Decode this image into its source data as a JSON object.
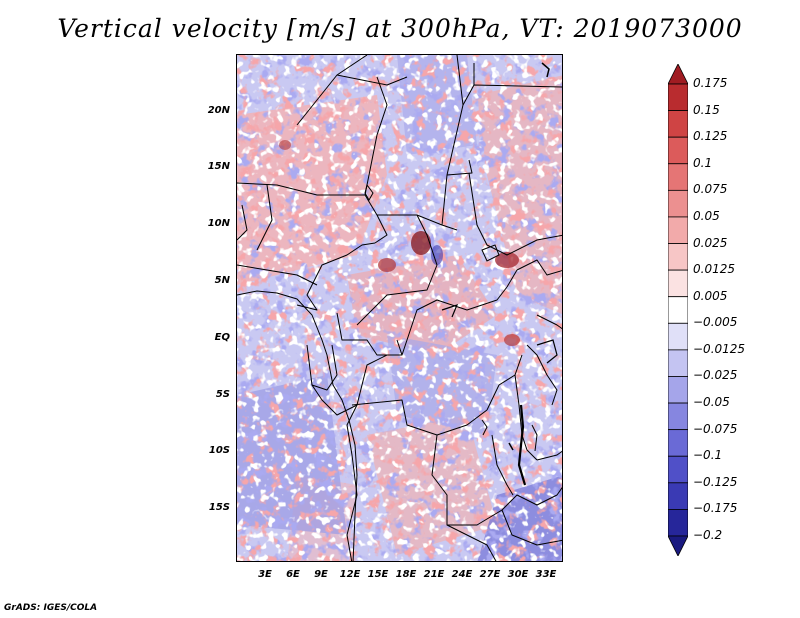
{
  "title": "Vertical velocity [m/s] at 300hPa, VT: 2019073000",
  "credit": "GrADS: IGES/COLA",
  "map": {
    "variable": "Vertical velocity",
    "units": "m/s",
    "level": "300hPa",
    "valid_time": "2019073000",
    "lat_ticks": [
      "20N",
      "15N",
      "10N",
      "5N",
      "EQ",
      "5S",
      "10S",
      "15S"
    ],
    "lon_ticks": [
      "3E",
      "6E",
      "9E",
      "12E",
      "15E",
      "18E",
      "21E",
      "24E",
      "27E",
      "30E",
      "33E"
    ]
  },
  "colorbar": {
    "labels": [
      "0.175",
      "0.15",
      "0.125",
      "0.1",
      "0.075",
      "0.05",
      "0.025",
      "0.0125",
      "0.005",
      "−0.005",
      "−0.0125",
      "−0.025",
      "−0.05",
      "−0.075",
      "−0.1",
      "−0.125",
      "−0.175",
      "−0.2"
    ],
    "colors": [
      "#a01c22",
      "#b92c2f",
      "#cf4444",
      "#dc5b5b",
      "#e57575",
      "#ec9090",
      "#f2aaaa",
      "#f7c6c6",
      "#fbe2e2",
      "#ffffff",
      "#e0e0f8",
      "#c4c4f2",
      "#a5a5ea",
      "#8686e0",
      "#6a6ad6",
      "#5050c8",
      "#3a3ab4",
      "#26269a",
      "#1a1a80"
    ]
  }
}
